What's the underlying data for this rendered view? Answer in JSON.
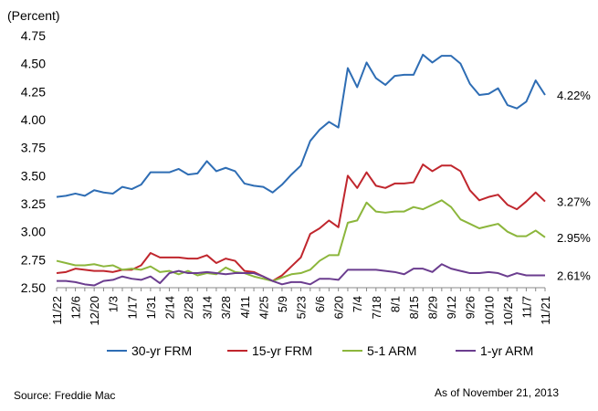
{
  "chart_data": {
    "type": "line",
    "title": "",
    "xlabel": "",
    "ylabel": "(Percent)",
    "ylim": [
      2.5,
      4.75
    ],
    "yticks": [
      "2.50",
      "2.75",
      "3.00",
      "3.25",
      "3.50",
      "3.75",
      "4.00",
      "4.25",
      "4.50",
      "4.75"
    ],
    "grid": false,
    "legend_position": "bottom",
    "x_tick_labels": [
      "11/22",
      "12/6",
      "12/20",
      "1/3",
      "1/17",
      "1/31",
      "2/14",
      "2/28",
      "3/14",
      "3/28",
      "4/11",
      "4/25",
      "5/9",
      "5/23",
      "6/6",
      "6/20",
      "7/4",
      "7/18",
      "8/1",
      "8/15",
      "8/29",
      "9/12",
      "9/26",
      "10/10",
      "10/24",
      "11/7",
      "11/21"
    ],
    "x": [
      "11/22",
      "11/29",
      "12/6",
      "12/13",
      "12/20",
      "12/27",
      "1/3",
      "1/10",
      "1/17",
      "1/24",
      "1/31",
      "2/7",
      "2/14",
      "2/21",
      "2/28",
      "3/7",
      "3/14",
      "3/21",
      "3/28",
      "4/4",
      "4/11",
      "4/18",
      "4/25",
      "5/2",
      "5/9",
      "5/16",
      "5/23",
      "5/30",
      "6/6",
      "6/13",
      "6/20",
      "6/27",
      "7/4",
      "7/11",
      "7/18",
      "7/25",
      "8/1",
      "8/8",
      "8/15",
      "8/22",
      "8/29",
      "9/5",
      "9/12",
      "9/19",
      "9/26",
      "10/3",
      "10/10",
      "10/17",
      "10/24",
      "10/31",
      "11/7",
      "11/14",
      "11/21"
    ],
    "series": [
      {
        "name": "30-yr FRM",
        "color": "#2e6db4",
        "end_label": "4.22%",
        "values": [
          3.31,
          3.32,
          3.34,
          3.32,
          3.37,
          3.35,
          3.34,
          3.4,
          3.38,
          3.42,
          3.53,
          3.53,
          3.53,
          3.56,
          3.51,
          3.52,
          3.63,
          3.54,
          3.57,
          3.54,
          3.43,
          3.41,
          3.4,
          3.35,
          3.42,
          3.51,
          3.59,
          3.81,
          3.91,
          3.98,
          3.93,
          4.46,
          4.29,
          4.51,
          4.37,
          4.31,
          4.39,
          4.4,
          4.4,
          4.58,
          4.51,
          4.57,
          4.57,
          4.5,
          4.32,
          4.22,
          4.23,
          4.28,
          4.13,
          4.1,
          4.16,
          4.35,
          4.22
        ]
      },
      {
        "name": "15-yr FRM",
        "color": "#c0262d",
        "end_label": "3.27%",
        "values": [
          2.63,
          2.64,
          2.67,
          2.66,
          2.65,
          2.65,
          2.64,
          2.66,
          2.66,
          2.7,
          2.81,
          2.77,
          2.77,
          2.77,
          2.76,
          2.76,
          2.79,
          2.72,
          2.76,
          2.74,
          2.65,
          2.64,
          2.6,
          2.56,
          2.61,
          2.69,
          2.77,
          2.98,
          3.03,
          3.1,
          3.04,
          3.5,
          3.39,
          3.53,
          3.41,
          3.39,
          3.43,
          3.43,
          3.44,
          3.6,
          3.54,
          3.59,
          3.59,
          3.54,
          3.37,
          3.28,
          3.31,
          3.33,
          3.24,
          3.2,
          3.27,
          3.35,
          3.27
        ]
      },
      {
        "name": "5-1 ARM",
        "color": "#8cb63c",
        "end_label": "2.95%",
        "values": [
          2.74,
          2.72,
          2.7,
          2.7,
          2.71,
          2.69,
          2.7,
          2.66,
          2.67,
          2.66,
          2.69,
          2.64,
          2.65,
          2.62,
          2.65,
          2.61,
          2.63,
          2.62,
          2.68,
          2.64,
          2.63,
          2.6,
          2.58,
          2.56,
          2.59,
          2.62,
          2.63,
          2.66,
          2.74,
          2.79,
          2.79,
          3.08,
          3.1,
          3.26,
          3.18,
          3.17,
          3.18,
          3.18,
          3.22,
          3.2,
          3.24,
          3.28,
          3.22,
          3.11,
          3.07,
          3.03,
          3.05,
          3.07,
          3.0,
          2.96,
          2.96,
          3.01,
          2.95
        ]
      },
      {
        "name": "1-yr ARM",
        "color": "#6b3d8f",
        "end_label": "2.61%",
        "values": [
          2.56,
          2.56,
          2.55,
          2.53,
          2.52,
          2.56,
          2.57,
          2.6,
          2.58,
          2.57,
          2.6,
          2.54,
          2.63,
          2.65,
          2.63,
          2.63,
          2.64,
          2.63,
          2.62,
          2.63,
          2.63,
          2.63,
          2.6,
          2.56,
          2.53,
          2.55,
          2.55,
          2.53,
          2.58,
          2.58,
          2.57,
          2.66,
          2.66,
          2.66,
          2.66,
          2.65,
          2.64,
          2.62,
          2.67,
          2.67,
          2.64,
          2.71,
          2.67,
          2.65,
          2.63,
          2.63,
          2.64,
          2.63,
          2.6,
          2.63,
          2.61,
          2.61,
          2.61
        ]
      }
    ]
  },
  "footer": {
    "source": "Source: Freddie Mac",
    "as_of": "As of November 21, 2013"
  }
}
